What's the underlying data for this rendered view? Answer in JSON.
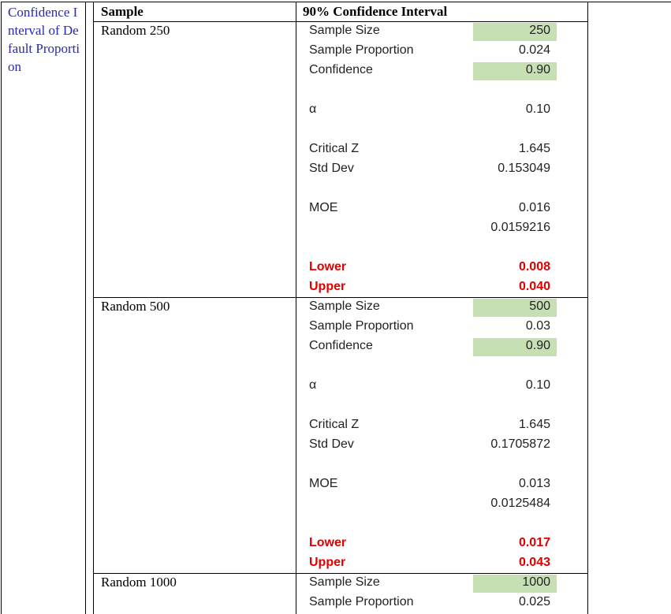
{
  "side_title": "Confidence Interval of Default Proportion",
  "table": {
    "headers": [
      "Sample",
      "90% Confidence Interval"
    ],
    "sections": [
      {
        "sample": "Random 250",
        "groups": [
          [
            {
              "label": "Sample Size",
              "value": "250",
              "highlight": true
            },
            {
              "label": "Sample Proportion",
              "value": "0.024"
            },
            {
              "label": "Confidence",
              "value": "0.90",
              "highlight": true
            }
          ],
          [
            {
              "label": "α",
              "value": "0.10"
            }
          ],
          [
            {
              "label": "Critical Z",
              "value": "1.645"
            },
            {
              "label": "Std Dev",
              "value": "0.153049"
            }
          ],
          [
            {
              "label": "MOE",
              "value": "0.016"
            },
            {
              "value": "0.0159216"
            }
          ],
          [
            {
              "label": "Lower",
              "value": "0.008",
              "emphasis": true
            },
            {
              "label": "Upper",
              "value": "0.040",
              "emphasis": true
            }
          ]
        ]
      },
      {
        "sample": "Random 500",
        "groups": [
          [
            {
              "label": "Sample Size",
              "value": "500",
              "highlight": true
            },
            {
              "label": "Sample Proportion",
              "value": "0.03"
            },
            {
              "label": "Confidence",
              "value": "0.90",
              "highlight": true
            }
          ],
          [
            {
              "label": "α",
              "value": "0.10"
            }
          ],
          [
            {
              "label": "Critical Z",
              "value": "1.645"
            },
            {
              "label": "Std Dev",
              "value": "0.1705872"
            }
          ],
          [
            {
              "label": "MOE",
              "value": "0.013"
            },
            {
              "value": "0.0125484"
            }
          ],
          [
            {
              "label": "Lower",
              "value": "0.017",
              "emphasis": true
            },
            {
              "label": "Upper",
              "value": "0.043",
              "emphasis": true
            }
          ]
        ]
      },
      {
        "sample": "Random 1000",
        "groups": [
          [
            {
              "label": "Sample Size",
              "value": "1000",
              "highlight": true
            },
            {
              "label": "Sample Proportion",
              "value": "0.025"
            }
          ]
        ]
      }
    ]
  }
}
